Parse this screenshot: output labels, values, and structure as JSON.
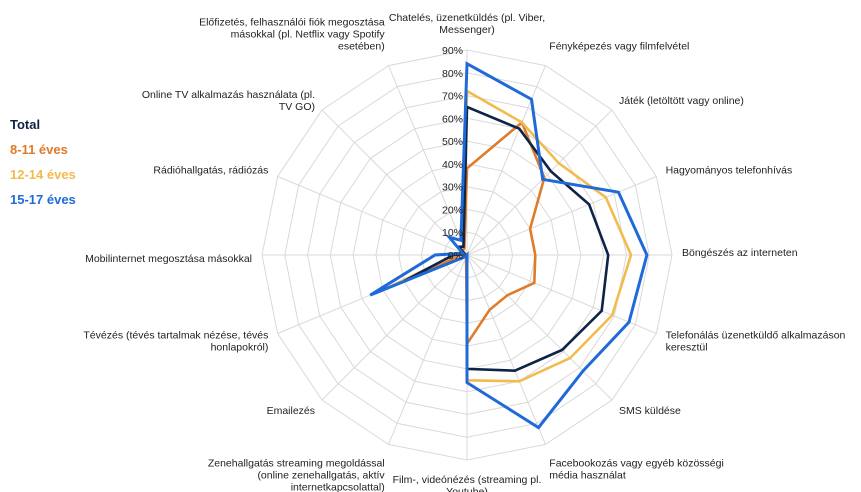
{
  "chart_data": {
    "type": "radar",
    "categories": [
      "Chatelés, üzenetküldés (pl. Viber, Messenger)",
      "Fényképezés vagy filmfelvétel",
      "Játék (letöltött vagy online)",
      "Hagyományos telefonhívás",
      "Böngészés az interneten",
      "Telefonálás üzenetküldő alkalmazáson keresztül",
      "SMS küldése",
      "Facebookozás vagy egyéb közösségi média használat",
      "Film-, videónézés (streaming pl. Youtube)",
      "Zenehallgatás streaming megoldással (online zenehallgatás, aktív internetkapcsolattal)",
      "Emailezés",
      "Tévézés (tévés tartalmak nézése, tévés honlapokról)",
      "Mobilinternet megosztása másokkal",
      "Rádióhallgatás, rádiózás",
      "Online TV alkalmazás használata (pl. TV GO)",
      "Előfizetés, felhasználói fiók megosztása másokkal (pl. Netflix vagy Spotify esetében)"
    ],
    "category_label_lines": [
      [
        "Chatelés, üzenetküldés (pl. Viber,",
        "Messenger)"
      ],
      [
        "Fényképezés vagy filmfelvétel"
      ],
      [
        "Játék (letöltött vagy online)"
      ],
      [
        "Hagyományos telefonhívás"
      ],
      [
        "Böngészés az interneten"
      ],
      [
        "Telefonálás üzenetküldő alkalmazáson",
        "keresztül"
      ],
      [
        "SMS küldése"
      ],
      [
        "Facebookozás vagy egyéb közösségi",
        "média használat"
      ],
      [
        "Film-, videónézés (streaming pl.",
        "Youtube)"
      ],
      [
        "Zenehallgatás streaming megoldással",
        "(online zenehallgatás, aktív",
        "internetkapcsolattal)"
      ],
      [
        "Emailezés"
      ],
      [
        "Tévézés (tévés tartalmak nézése, tévés",
        "honlapokról)"
      ],
      [
        "Mobilinternet megosztása másokkal"
      ],
      [
        "Rádióhallgatás, rádiózás"
      ],
      [
        "Online TV alkalmazás használata (pl.",
        "TV GO)"
      ],
      [
        "Előfizetés, felhasználói fiók megosztása",
        "másokkal (pl. Netflix vagy Spotify",
        "esetében)"
      ]
    ],
    "ticks": [
      "0%",
      "10%",
      "20%",
      "30%",
      "40%",
      "50%",
      "60%",
      "70%",
      "80%",
      "90%"
    ],
    "rmax": 90,
    "grid": true,
    "legend_position": "left",
    "series": [
      {
        "name": "Total",
        "color": "#0d2447",
        "values": [
          65,
          60,
          52,
          58,
          62,
          64,
          59,
          55,
          50,
          0,
          1,
          30,
          6,
          1,
          5,
          4
        ]
      },
      {
        "name": "8-11 éves",
        "color": "#e07b2a",
        "values": [
          38,
          63,
          48,
          30,
          30,
          32,
          25,
          26,
          39,
          1,
          1,
          20,
          3,
          1,
          3,
          3
        ]
      },
      {
        "name": "12-14 éves",
        "color": "#f2bb4e",
        "values": [
          72,
          63,
          57,
          66,
          72,
          69,
          64,
          60,
          55,
          0,
          1,
          39,
          5,
          1,
          5,
          4
        ]
      },
      {
        "name": "15-17 éves",
        "color": "#1f6ad8",
        "values": [
          84,
          74,
          47,
          72,
          79,
          77,
          72,
          82,
          56,
          0,
          1,
          46,
          14,
          2,
          11,
          7
        ]
      }
    ]
  }
}
